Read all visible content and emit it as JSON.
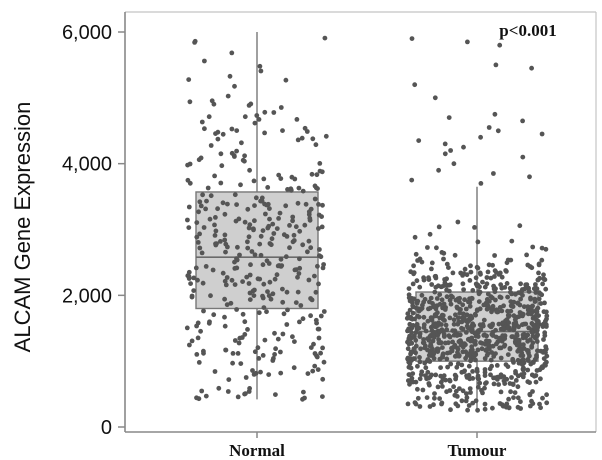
{
  "chart_data": {
    "type": "box",
    "ylabel": "ALCAM Gene Expression",
    "ylim": [
      0,
      6000
    ],
    "yticks": [
      {
        "value": 0,
        "label": "0"
      },
      {
        "value": 2000,
        "label": "2,000"
      },
      {
        "value": 4000,
        "label": "4,000"
      },
      {
        "value": 6000,
        "label": "6,000"
      }
    ],
    "categories": [
      "Normal",
      "Tumour"
    ],
    "annotation": "p<0.001",
    "grid": false,
    "colors": {
      "box_fill": "#cfcfcf",
      "box_stroke": "#777777",
      "points": "#555555",
      "axis": "#888888"
    },
    "series": [
      {
        "category": "Normal",
        "whisker_low": 420,
        "q1": 1800,
        "median": 2580,
        "q3": 3570,
        "whisker_high": 6000,
        "n_points_approx": 380
      },
      {
        "category": "Tumour",
        "whisker_low": 250,
        "q1": 1000,
        "median": 1450,
        "q3": 2050,
        "whisker_high": 3650,
        "n_points_approx": 900,
        "outliers_above": [
          3700,
          3750,
          3800,
          3850,
          3900,
          4000,
          4100,
          4150,
          4200,
          4250,
          4300,
          4350,
          4400,
          4450,
          4500,
          4550,
          4650,
          4700,
          4750,
          5000,
          5200,
          5450,
          5500,
          5800,
          5850,
          5900
        ]
      }
    ]
  }
}
